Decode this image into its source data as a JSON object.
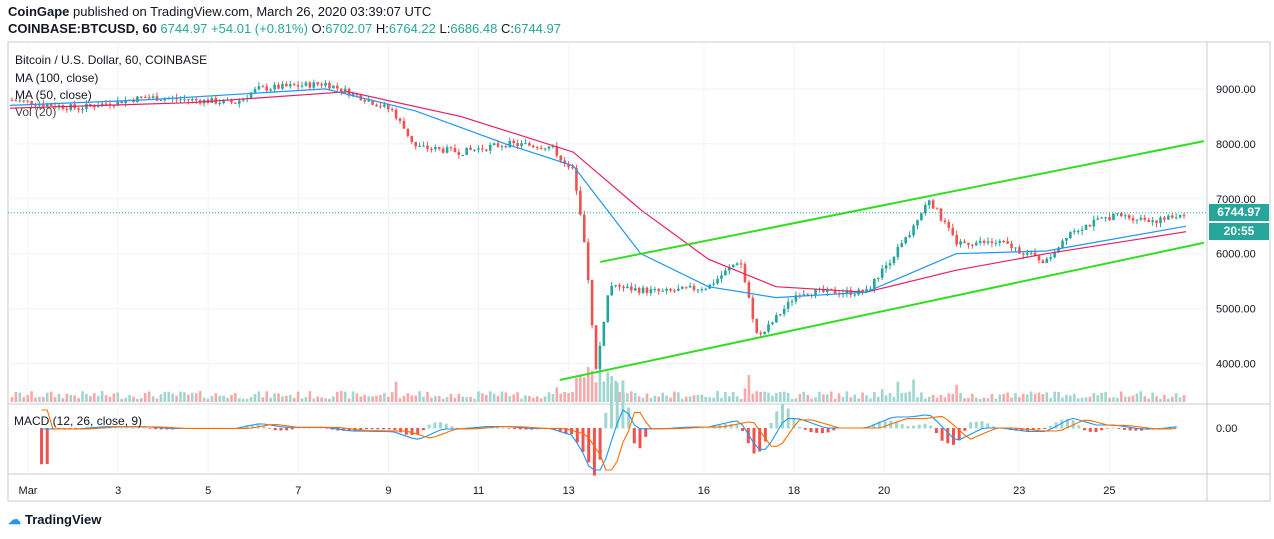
{
  "header": {
    "publisher": "CoinGape",
    "published_text": "published on TradingView.com, March 26, 2020 03:39:07 UTC",
    "symbol": "COINBASE:BTCUSD, 60",
    "price": "6744.97",
    "change": "+54.01 (+0.81%)",
    "o_label": "O:",
    "o": "6702.07",
    "h_label": "H:",
    "h": "6764.22",
    "l_label": "L:",
    "l": "6686.48",
    "c_label": "C:",
    "c": "6744.97"
  },
  "legend": {
    "title": "Bitcoin / U.S. Dollar, 60, COINBASE",
    "ma100": "MA (100, close)",
    "ma50": "MA (50, close)",
    "vol": "Vol (20)",
    "macd": "MACD (12, 26, close, 9)"
  },
  "price_tag": "6744.97",
  "countdown_tag": "20:55",
  "footer": {
    "brand": "TradingView"
  },
  "colors": {
    "up": "#26a69a",
    "down": "#ef5350",
    "ma50": "#2196f3",
    "ma100": "#e91e63",
    "channel": "#33dd22",
    "macd": "#2196f3",
    "signal": "#ff6d00"
  },
  "chart_data": {
    "type": "line",
    "title": "Bitcoin / U.S. Dollar, 60, COINBASE",
    "y_ticks": [
      "9000.00",
      "8000.00",
      "7000.00",
      "6000.00",
      "5000.00",
      "4000.00"
    ],
    "macd_ticks": [
      "0.00"
    ],
    "x_ticks": [
      "Mar",
      "3",
      "5",
      "7",
      "9",
      "11",
      "13",
      "16",
      "18",
      "20",
      "23",
      "25"
    ],
    "ylim": [
      3300,
      9800
    ],
    "last_price": 6744.97,
    "price_path": [
      {
        "x": 0,
        "y": 8800
      },
      {
        "x": 1.5,
        "y": 8650
      },
      {
        "x": 3,
        "y": 8850
      },
      {
        "x": 5,
        "y": 8750
      },
      {
        "x": 5.5,
        "y": 9000
      },
      {
        "x": 7,
        "y": 9100
      },
      {
        "x": 7.8,
        "y": 8850
      },
      {
        "x": 8.5,
        "y": 8600
      },
      {
        "x": 9,
        "y": 7950
      },
      {
        "x": 10,
        "y": 7850
      },
      {
        "x": 11,
        "y": 8000
      },
      {
        "x": 12,
        "y": 7950
      },
      {
        "x": 12.5,
        "y": 7500
      },
      {
        "x": 12.8,
        "y": 5900
      },
      {
        "x": 13.0,
        "y": 3850
      },
      {
        "x": 13.3,
        "y": 5400
      },
      {
        "x": 14.5,
        "y": 5300
      },
      {
        "x": 15.5,
        "y": 5400
      },
      {
        "x": 16.2,
        "y": 5900
      },
      {
        "x": 16.6,
        "y": 4450
      },
      {
        "x": 17.5,
        "y": 5300
      },
      {
        "x": 19,
        "y": 5300
      },
      {
        "x": 20,
        "y": 6400
      },
      {
        "x": 20.4,
        "y": 7000
      },
      {
        "x": 21,
        "y": 6200
      },
      {
        "x": 22,
        "y": 6200
      },
      {
        "x": 23,
        "y": 5850
      },
      {
        "x": 23.5,
        "y": 6400
      },
      {
        "x": 24.5,
        "y": 6700
      },
      {
        "x": 25.5,
        "y": 6600
      },
      {
        "x": 26.1,
        "y": 6745
      }
    ],
    "ma50": [
      {
        "x": 0,
        "y": 8700
      },
      {
        "x": 3,
        "y": 8800
      },
      {
        "x": 7,
        "y": 9000
      },
      {
        "x": 9,
        "y": 8600
      },
      {
        "x": 11,
        "y": 8000
      },
      {
        "x": 12.5,
        "y": 7600
      },
      {
        "x": 14,
        "y": 6000
      },
      {
        "x": 15.5,
        "y": 5400
      },
      {
        "x": 17,
        "y": 5200
      },
      {
        "x": 19,
        "y": 5300
      },
      {
        "x": 21,
        "y": 6000
      },
      {
        "x": 23,
        "y": 6050
      },
      {
        "x": 26.1,
        "y": 6500
      }
    ],
    "ma100": [
      {
        "x": 0,
        "y": 8650
      },
      {
        "x": 4,
        "y": 8750
      },
      {
        "x": 7.5,
        "y": 8950
      },
      {
        "x": 10,
        "y": 8500
      },
      {
        "x": 12.5,
        "y": 7850
      },
      {
        "x": 14,
        "y": 6800
      },
      {
        "x": 15.5,
        "y": 5900
      },
      {
        "x": 17,
        "y": 5400
      },
      {
        "x": 19,
        "y": 5300
      },
      {
        "x": 21,
        "y": 5700
      },
      {
        "x": 23,
        "y": 6000
      },
      {
        "x": 26.1,
        "y": 6400
      }
    ],
    "channel": [
      {
        "name": "upper",
        "x": [
          13.1,
          26.5
        ],
        "y": [
          5850,
          8050
        ]
      },
      {
        "name": "lower",
        "x": [
          12.2,
          26.5
        ],
        "y": [
          3700,
          6200
        ]
      }
    ],
    "x_range": [
      0,
      26.5
    ]
  }
}
